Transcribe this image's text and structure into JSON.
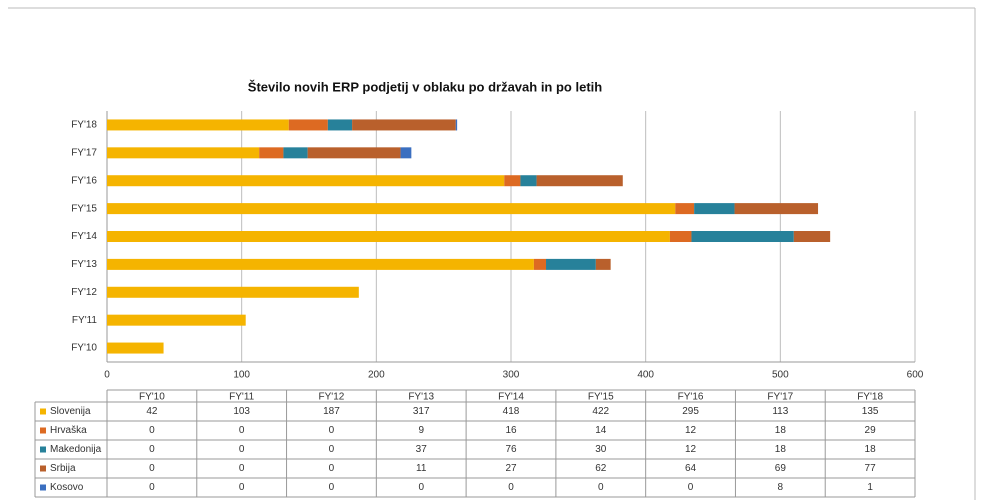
{
  "chart_data": {
    "type": "bar",
    "orientation": "horizontal",
    "stacked": true,
    "title": "Število novih ERP podjetij v oblaku po državah in po letih",
    "categories": [
      "FY'10",
      "FY'11",
      "FY'12",
      "FY'13",
      "FY'14",
      "FY'15",
      "FY'16",
      "FY'17",
      "FY'18"
    ],
    "series": [
      {
        "name": "Slovenija",
        "color": "#f5b400",
        "values": [
          42,
          103,
          187,
          317,
          418,
          422,
          295,
          113,
          135
        ]
      },
      {
        "name": "Hrvaška",
        "color": "#dd6a22",
        "values": [
          0,
          0,
          0,
          9,
          16,
          14,
          12,
          18,
          29
        ]
      },
      {
        "name": "Makedonija",
        "color": "#27819a",
        "values": [
          0,
          0,
          0,
          37,
          76,
          30,
          12,
          18,
          18
        ]
      },
      {
        "name": "Srbija",
        "color": "#b9602c",
        "values": [
          0,
          0,
          0,
          11,
          27,
          62,
          64,
          69,
          77
        ]
      },
      {
        "name": "Kosovo",
        "color": "#3b6fc0",
        "values": [
          0,
          0,
          0,
          0,
          0,
          0,
          0,
          8,
          1
        ]
      }
    ],
    "xlim": [
      0,
      600
    ],
    "xticks": [
      0,
      100,
      200,
      300,
      400,
      500,
      600
    ],
    "grid": true
  }
}
